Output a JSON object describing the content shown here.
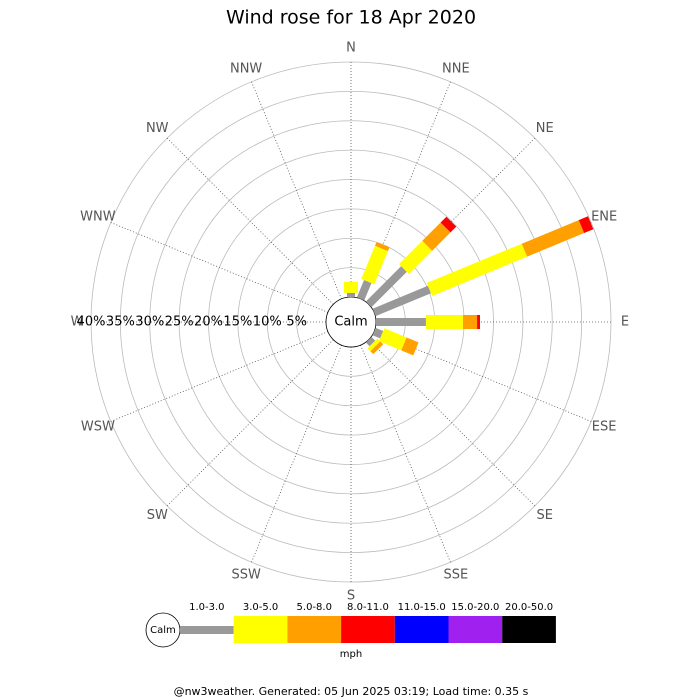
{
  "chart_data": {
    "type": "windrose",
    "title": "Wind rose for 18 Apr 2020",
    "directions": [
      "N",
      "NNE",
      "NE",
      "ENE",
      "E",
      "ESE",
      "SE",
      "SSE",
      "S",
      "SSW",
      "SW",
      "WSW",
      "W",
      "WNW",
      "NW",
      "NNW"
    ],
    "rlim": [
      0,
      40
    ],
    "rticks": [
      {
        "value": 5,
        "label": "5%"
      },
      {
        "value": 10,
        "label": "10%"
      },
      {
        "value": 15,
        "label": "15%"
      },
      {
        "value": 20,
        "label": "20%"
      },
      {
        "value": 25,
        "label": "25%"
      },
      {
        "value": 30,
        "label": "30%"
      },
      {
        "value": 35,
        "label": "35%"
      },
      {
        "value": 40,
        "label": "40%"
      }
    ],
    "calm_label": "Calm",
    "unit": "mph",
    "series": [
      {
        "name": "1.0-3.0",
        "color": "#999999",
        "values": [
          0.7,
          3.2,
          8.5,
          10.2,
          8.5,
          1.4,
          0.9,
          0,
          0,
          0,
          0,
          0,
          0,
          0,
          0,
          0
        ]
      },
      {
        "name": "3.0-5.0",
        "color": "#ffff00",
        "values": [
          1.9,
          6.1,
          5.6,
          17.5,
          6.3,
          4.1,
          0.7,
          0,
          0,
          0,
          0,
          0,
          0,
          0,
          0,
          0
        ]
      },
      {
        "name": "5.0-8.0",
        "color": "#ffa000",
        "values": [
          0,
          0.7,
          4.4,
          10.5,
          2.4,
          2.2,
          0.7,
          0,
          0,
          0,
          0,
          0,
          0,
          0,
          0,
          0
        ]
      },
      {
        "name": "8.0-11.0",
        "color": "#ff0000",
        "values": [
          0,
          0,
          1.4,
          1.7,
          0.5,
          0,
          0,
          0,
          0,
          0,
          0,
          0,
          0,
          0,
          0,
          0
        ]
      },
      {
        "name": "11.0-15.0",
        "color": "#0000ff",
        "values": [
          0,
          0,
          0,
          0,
          0,
          0,
          0,
          0,
          0,
          0,
          0,
          0,
          0,
          0,
          0,
          0
        ]
      },
      {
        "name": "15.0-20.0",
        "color": "#a020f0",
        "values": [
          0,
          0,
          0,
          0,
          0,
          0,
          0,
          0,
          0,
          0,
          0,
          0,
          0,
          0,
          0,
          0
        ]
      },
      {
        "name": "20.0-50.0",
        "color": "#000000",
        "values": [
          0,
          0,
          0,
          0,
          0,
          0,
          0,
          0,
          0,
          0,
          0,
          0,
          0,
          0,
          0,
          0
        ]
      }
    ],
    "footer": "@nw3weather. Generated: 05 Jun 2025 03:19; Load time: 0.35 s"
  }
}
